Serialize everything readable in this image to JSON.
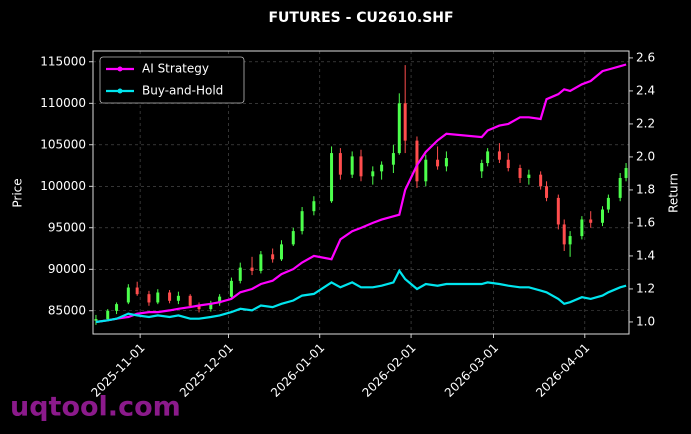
{
  "chart_data": {
    "type": "candlestick",
    "title": "FUTURES - CU2610.SHF",
    "ylabel": "Price",
    "y2label": "Return",
    "watermark": "uqtool.com",
    "x": [
      "2025-10-17",
      "2025-10-21",
      "2025-10-24",
      "2025-10-28",
      "2025-10-31",
      "2025-11-04",
      "2025-11-07",
      "2025-11-11",
      "2025-11-14",
      "2025-11-18",
      "2025-11-21",
      "2025-11-25",
      "2025-11-28",
      "2025-12-02",
      "2025-12-05",
      "2025-12-09",
      "2025-12-12",
      "2025-12-16",
      "2025-12-19",
      "2025-12-23",
      "2025-12-26",
      "2025-12-30",
      "2026-01-05",
      "2026-01-08",
      "2026-01-12",
      "2026-01-15",
      "2026-01-19",
      "2026-01-22",
      "2026-01-26",
      "2026-01-28",
      "2026-01-30",
      "2026-02-03",
      "2026-02-06",
      "2026-02-10",
      "2026-02-13",
      "2026-02-25",
      "2026-02-27",
      "2026-03-03",
      "2026-03-06",
      "2026-03-10",
      "2026-03-13",
      "2026-03-17",
      "2026-03-19",
      "2026-03-23",
      "2026-03-25",
      "2026-03-27",
      "2026-03-31",
      "2026-04-03",
      "2026-04-07",
      "2026-04-09",
      "2026-04-13",
      "2026-04-15"
    ],
    "open": [
      83800,
      84000,
      85000,
      86000,
      87800,
      87000,
      86000,
      87200,
      86200,
      86800,
      85600,
      85200,
      85900,
      86700,
      88600,
      90200,
      89800,
      91800,
      91200,
      93000,
      94600,
      97000,
      98200,
      104000,
      101400,
      103600,
      101200,
      101800,
      102600,
      104000,
      110000,
      105500,
      100600,
      103200,
      102400,
      101800,
      102800,
      104200,
      103200,
      102200,
      101000,
      101400,
      100000,
      98600,
      95400,
      93000,
      94000,
      96000,
      95600,
      97200,
      98600,
      101000
    ],
    "high": [
      84500,
      85200,
      86000,
      88200,
      88500,
      87400,
      87600,
      87500,
      87300,
      87000,
      86000,
      86200,
      87000,
      89000,
      90800,
      91500,
      92200,
      92500,
      93500,
      95000,
      97500,
      98800,
      104800,
      104600,
      104200,
      104400,
      102400,
      103000,
      105000,
      111200,
      114600,
      106000,
      103800,
      104800,
      104200,
      103200,
      104600,
      105200,
      104000,
      102600,
      102000,
      101800,
      100600,
      99000,
      96000,
      94600,
      96400,
      97000,
      97600,
      99000,
      101600,
      102800
    ],
    "low": [
      83300,
      83800,
      84600,
      85800,
      86800,
      85600,
      85800,
      85900,
      85800,
      85400,
      84800,
      84900,
      85600,
      86500,
      88300,
      89300,
      89500,
      90800,
      91000,
      92800,
      94200,
      96500,
      98000,
      100800,
      101000,
      100600,
      100200,
      100800,
      101600,
      103800,
      104000,
      99800,
      100000,
      102000,
      101800,
      101000,
      102400,
      102800,
      101800,
      100400,
      100200,
      99600,
      98200,
      94800,
      92200,
      91500,
      93600,
      95000,
      95200,
      96800,
      98200,
      100600
    ],
    "close": [
      84000,
      85000,
      85800,
      87800,
      87000,
      86000,
      87200,
      86200,
      86800,
      85600,
      85200,
      85900,
      86700,
      88600,
      90200,
      89800,
      91800,
      91200,
      93000,
      94600,
      97000,
      98200,
      104000,
      101400,
      103600,
      101200,
      101800,
      102600,
      104000,
      110000,
      105500,
      100600,
      103200,
      102400,
      103400,
      102800,
      104200,
      103200,
      102200,
      101000,
      101400,
      100000,
      98600,
      95400,
      93000,
      94000,
      96000,
      95600,
      97200,
      98600,
      101000,
      102200
    ],
    "up_color": "#4cff4c",
    "down_color": "#ff4d4d",
    "series": [
      {
        "name": "AI Strategy",
        "color": "#ff00ff",
        "axis": "y2",
        "values": [
          1.0,
          1.01,
          1.02,
          1.03,
          1.05,
          1.06,
          1.06,
          1.07,
          1.08,
          1.09,
          1.1,
          1.11,
          1.12,
          1.14,
          1.18,
          1.2,
          1.23,
          1.25,
          1.29,
          1.32,
          1.36,
          1.4,
          1.38,
          1.5,
          1.55,
          1.57,
          1.6,
          1.62,
          1.64,
          1.65,
          1.8,
          1.95,
          2.03,
          2.1,
          2.14,
          2.12,
          2.16,
          2.19,
          2.2,
          2.24,
          2.24,
          2.23,
          2.35,
          2.38,
          2.41,
          2.4,
          2.44,
          2.46,
          2.52,
          2.53,
          2.55,
          2.56
        ]
      },
      {
        "name": "Buy-and-Hold",
        "color": "#00e5ee",
        "axis": "y2",
        "values": [
          1.0,
          1.01,
          1.02,
          1.05,
          1.04,
          1.03,
          1.04,
          1.03,
          1.04,
          1.02,
          1.02,
          1.03,
          1.04,
          1.06,
          1.08,
          1.07,
          1.1,
          1.09,
          1.11,
          1.13,
          1.16,
          1.17,
          1.24,
          1.21,
          1.24,
          1.21,
          1.21,
          1.22,
          1.24,
          1.31,
          1.26,
          1.2,
          1.23,
          1.22,
          1.23,
          1.23,
          1.24,
          1.23,
          1.22,
          1.21,
          1.21,
          1.19,
          1.18,
          1.14,
          1.11,
          1.12,
          1.15,
          1.14,
          1.16,
          1.18,
          1.21,
          1.22
        ]
      }
    ],
    "xlim": [
      "2025-10-16",
      "2026-04-16"
    ],
    "xticks": [
      "2025-11-01",
      "2025-12-01",
      "2026-01-01",
      "2026-02-01",
      "2026-03-01",
      "2026-04-01"
    ],
    "ylim": [
      82200,
      116300
    ],
    "yticks": [
      85000,
      90000,
      95000,
      100000,
      105000,
      110000,
      115000
    ],
    "y2lim": [
      0.927,
      2.642
    ],
    "y2ticks": [
      {
        "value": 1,
        "label": "1.0"
      },
      1.2,
      1.4,
      1.6,
      1.8,
      {
        "value": 2,
        "label": "2.0"
      },
      2.2,
      2.4,
      2.6
    ],
    "grid": true,
    "legend": "upper-left"
  }
}
